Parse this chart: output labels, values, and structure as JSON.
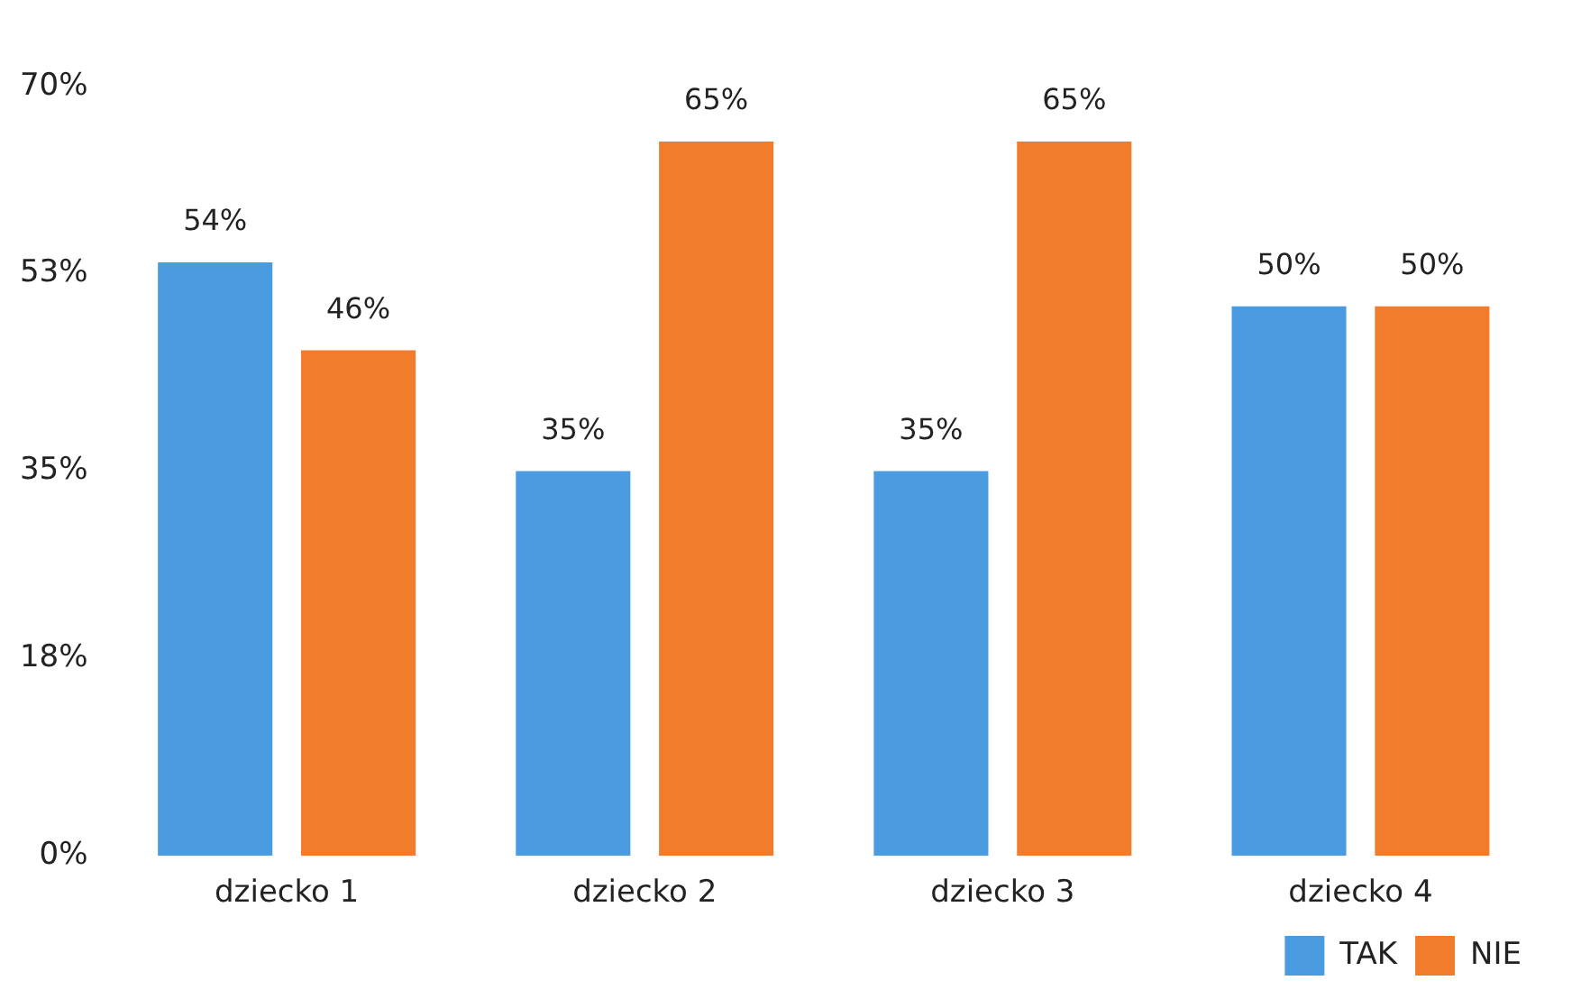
{
  "chart_data": {
    "type": "bar",
    "categories": [
      "dziecko 1",
      "dziecko 2",
      "dziecko 3",
      "dziecko 4"
    ],
    "series": [
      {
        "name": "TAK",
        "color": "#4a9be0",
        "values": [
          54,
          35,
          35,
          50
        ],
        "value_labels": [
          "54%",
          "35%",
          "35%",
          "50%"
        ]
      },
      {
        "name": "NIE",
        "color": "#f07c2c",
        "values": [
          46,
          65,
          65,
          50
        ],
        "value_labels": [
          "46%",
          "65%",
          "65%",
          "50%"
        ]
      }
    ],
    "ylim": [
      0,
      70
    ],
    "yticks": [
      {
        "value": 0,
        "label": "0%"
      },
      {
        "value": 18,
        "label": "18%"
      },
      {
        "value": 35,
        "label": "35%"
      },
      {
        "value": 53,
        "label": "53%"
      },
      {
        "value": 70,
        "label": "70%"
      }
    ],
    "grid": false,
    "legend": "bottom"
  }
}
